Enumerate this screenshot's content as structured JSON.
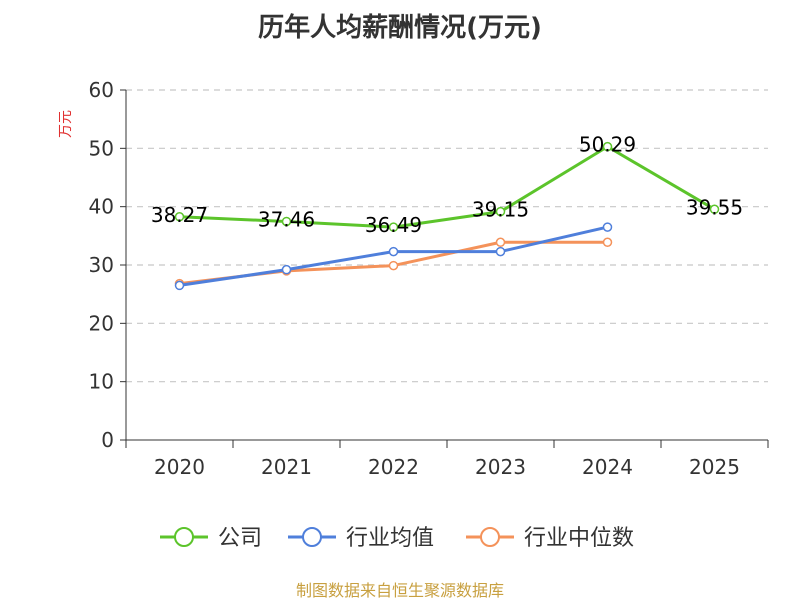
{
  "chart_data": {
    "type": "line",
    "title": "历年人均薪酬情况(万元)",
    "ylabel": "万元",
    "categories": [
      "2020",
      "2021",
      "2022",
      "2023",
      "2024",
      "2025"
    ],
    "ylim": [
      0,
      60
    ],
    "yticks": [
      0,
      10,
      20,
      30,
      40,
      50,
      60
    ],
    "grid": true,
    "legend_position": "bottom",
    "series": [
      {
        "name": "公司",
        "color": "#5cc42b",
        "values": [
          38.27,
          37.46,
          36.49,
          39.15,
          50.29,
          39.55
        ],
        "labels": [
          "38.27",
          "37.46",
          "36.49",
          "39.15",
          "50.29",
          "39.55"
        ]
      },
      {
        "name": "行业均值",
        "color": "#4f7fdb",
        "values": [
          26.5,
          29.2,
          32.3,
          32.3,
          36.5,
          null
        ]
      },
      {
        "name": "行业中位数",
        "color": "#f4925a",
        "values": [
          26.8,
          29.0,
          29.9,
          33.9,
          33.9,
          null
        ]
      }
    ]
  },
  "footer": {
    "source": "制图数据来自恒生聚源数据库"
  }
}
